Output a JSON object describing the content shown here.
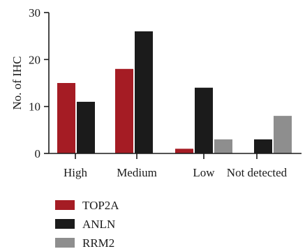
{
  "chart_data": {
    "type": "bar",
    "title": "",
    "xlabel": "",
    "ylabel": "No. of IHC",
    "categories": [
      "High",
      "Medium",
      "Low",
      "Not detected"
    ],
    "ylim": [
      0,
      30
    ],
    "yticks": [
      "0",
      "10",
      "20",
      "30"
    ],
    "grid": false,
    "legend_placement": "bottom-left",
    "series": [
      {
        "name": "TOP2A",
        "color": "#a51c24",
        "values": [
          15,
          18,
          1,
          0
        ]
      },
      {
        "name": "ANLN",
        "color": "#1b1b1b",
        "values": [
          11,
          26,
          14,
          3
        ]
      },
      {
        "name": "RRM2",
        "color": "#8e8e8e",
        "values": [
          0,
          0,
          3,
          8
        ]
      }
    ]
  }
}
